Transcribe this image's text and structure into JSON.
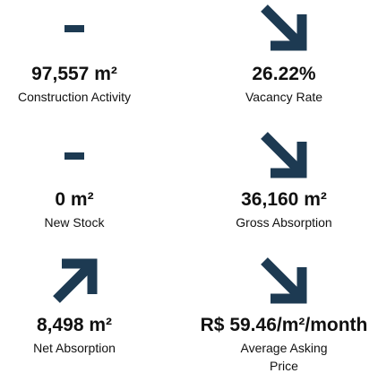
{
  "tiles": [
    {
      "value": "97,557 m²",
      "label": "Construction Activity"
    },
    {
      "value": "26.22%",
      "label": "Vacancy Rate"
    },
    {
      "value": "0 m²",
      "label": "New Stock"
    },
    {
      "value": "36,160 m²",
      "label": "Gross Absorption"
    },
    {
      "value": "8,498 m²",
      "label": "Net Absorption"
    },
    {
      "value": "R$ 59.46/m²/month",
      "label": "Average Asking Price"
    }
  ]
}
